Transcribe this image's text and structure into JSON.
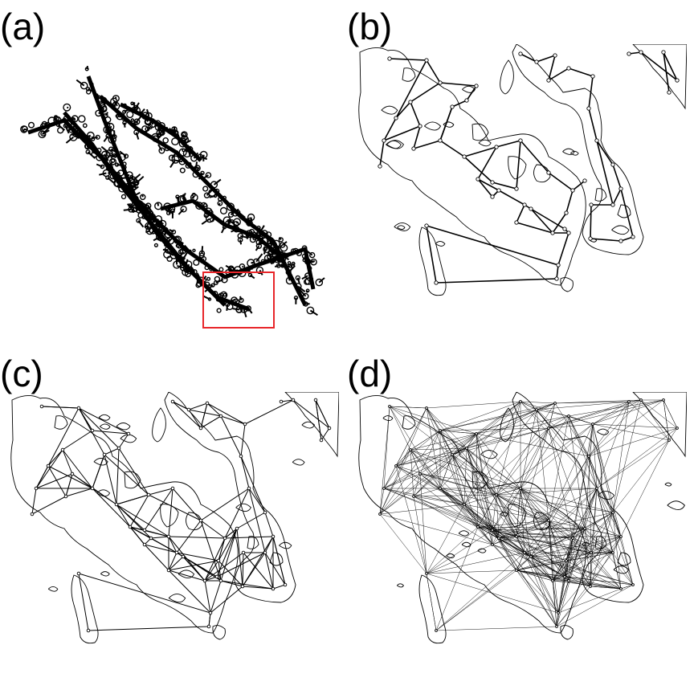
{
  "panels": {
    "a": {
      "label": "(a)"
    },
    "b": {
      "label": "(b)"
    },
    "c": {
      "label": "(c)"
    },
    "d": {
      "label": "(d)"
    }
  },
  "colors": {
    "outline": "#000000",
    "edge": "#000000",
    "highlight_box": "#e8262a",
    "background": "#ffffff"
  }
}
